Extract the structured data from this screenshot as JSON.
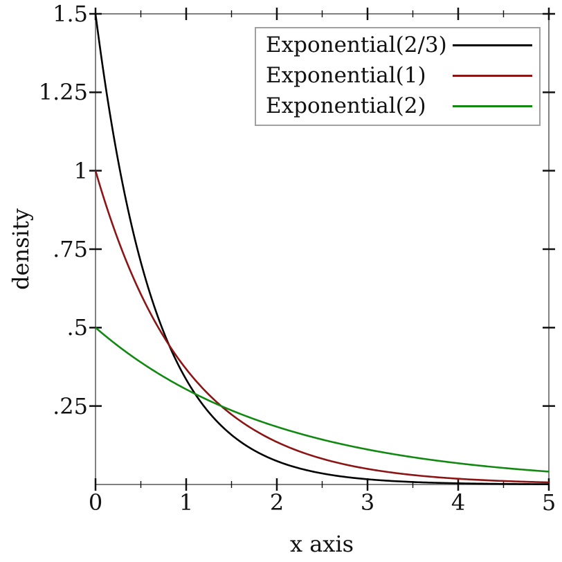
{
  "colors": {
    "frame": "#808080",
    "tick": "#111111",
    "text": "#111111",
    "legend_border": "#a0a0a0",
    "background": "#ffffff"
  },
  "chart_data": {
    "type": "line",
    "xlabel": "x axis",
    "ylabel": "density",
    "xlim": [
      0,
      5
    ],
    "ylim": [
      0,
      1.5
    ],
    "grid": false,
    "legend_position": "top-right-inside",
    "x_major_ticks": [
      {
        "v": 0,
        "label": "0"
      },
      {
        "v": 1,
        "label": "1"
      },
      {
        "v": 2,
        "label": "2"
      },
      {
        "v": 3,
        "label": "3"
      },
      {
        "v": 4,
        "label": "4"
      },
      {
        "v": 5,
        "label": "5"
      }
    ],
    "x_minor_ticks": [
      0.5,
      1.5,
      2.5,
      3.5,
      4.5
    ],
    "y_major_ticks": [
      {
        "v": 0.25,
        "label": ".25"
      },
      {
        "v": 0.5,
        "label": ".5"
      },
      {
        "v": 0.75,
        "label": ".75"
      },
      {
        "v": 1,
        "label": "1"
      },
      {
        "v": 1.25,
        "label": "1.25"
      },
      {
        "v": 1.5,
        "label": "1.5"
      }
    ],
    "series": [
      {
        "name": "Exponential(2/3)",
        "color": "#000000",
        "distribution": "exponential-density",
        "mean": 0.6667,
        "rate": 1.5,
        "sample_points": {
          "x": [
            0,
            0.5,
            1,
            1.5,
            2,
            2.5,
            3,
            3.5,
            4,
            4.5,
            5
          ],
          "y": [
            1.5,
            0.7085,
            0.3347,
            0.1581,
            0.0747,
            0.0353,
            0.0167,
            0.0079,
            0.0037,
            0.0018,
            0.0008
          ]
        }
      },
      {
        "name": "Exponential(1)",
        "color": "#8b1414",
        "distribution": "exponential-density",
        "mean": 1,
        "rate": 1,
        "sample_points": {
          "x": [
            0,
            0.5,
            1,
            1.5,
            2,
            2.5,
            3,
            3.5,
            4,
            4.5,
            5
          ],
          "y": [
            1.0,
            0.6065,
            0.3679,
            0.2231,
            0.1353,
            0.0821,
            0.0498,
            0.0302,
            0.0183,
            0.0111,
            0.0067
          ]
        }
      },
      {
        "name": "Exponential(2)",
        "color": "#118911",
        "distribution": "exponential-density",
        "mean": 2,
        "rate": 0.5,
        "sample_points": {
          "x": [
            0,
            0.5,
            1,
            1.5,
            2,
            2.5,
            3,
            3.5,
            4,
            4.5,
            5
          ],
          "y": [
            0.5,
            0.3894,
            0.3033,
            0.2362,
            0.1839,
            0.1433,
            0.1116,
            0.0869,
            0.0677,
            0.0527,
            0.041
          ]
        }
      }
    ]
  },
  "legend": {
    "entries": [
      {
        "label": "Exponential(2/3)",
        "color": "#000000"
      },
      {
        "label": "Exponential(1)",
        "color": "#8b1414"
      },
      {
        "label": "Exponential(2)",
        "color": "#118911"
      }
    ]
  }
}
